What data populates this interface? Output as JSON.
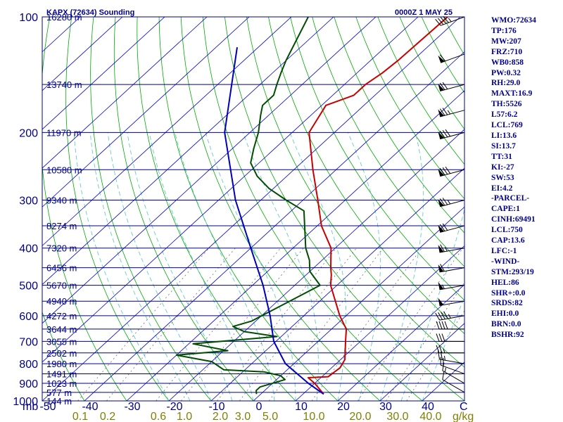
{
  "header": {
    "station": "KAPX (72634) Sounding",
    "time": "0000Z  1 MAY 25"
  },
  "axis": {
    "temp_unit": "C",
    "mixing_unit": "g/kg",
    "pressure_unit": "mb",
    "pressure_labels": [
      "100",
      "200",
      "300",
      "400",
      "500",
      "600",
      "700",
      "800",
      "900",
      "1000"
    ],
    "temp_labels": [
      "-50",
      "-40",
      "-30",
      "-20",
      "-10",
      "0",
      "10",
      "20",
      "30",
      "40"
    ],
    "mixing_labels": [
      "0.1",
      "0.2",
      "0.6",
      "1.0",
      "2.0",
      "3.0",
      "5.0",
      "10.0",
      "20.0",
      "30.0",
      "40.0"
    ]
  },
  "height_labels": [
    "16280 m",
    "13740 m",
    "11970 m",
    "10580 m",
    "9340 m",
    "8274 m",
    "7320 m",
    "6456 m",
    "5670 m",
    "4940 m",
    "4272 m",
    "3644 m",
    "3055 m",
    "2502 m",
    "1980 m",
    "1491 m",
    "1023 m",
    "577 m",
    "144 m"
  ],
  "indices": [
    "WMO:72634",
    "TP:176",
    "MW:207",
    "FRZ:710",
    "WB0:858",
    "PW:0.32",
    "RH:29.0",
    "MAXT:16.9",
    "TH:5526",
    "L57:6.2",
    "LCL:769",
    "LI:13.6",
    "SI:13.7",
    "TT:31",
    "KI:-27",
    "SW:53",
    "EI:4.2",
    "-PARCEL-",
    "CAPE:1",
    "CINH:69491",
    "LCL:750",
    "CAP:13.6",
    "LFC:-1",
    "-WIND-",
    "STM:293/19",
    "HEL:86",
    "SHR+:0.0",
    "SRDS:82",
    "EHI:0.0",
    "BRN:0.0",
    "BSHR:92"
  ],
  "colors": {
    "axis_text": "#00008b",
    "mixing_text": "#808000",
    "isobar": "#00008b",
    "isotherm": "#0000cd",
    "dry_adiabat": "#00aa00",
    "moist_adiabat": "#66cccc",
    "mixing_line": "#707070",
    "temperature": "#c80000",
    "dewpoint": "#004d00",
    "parcel": "#0000bb",
    "wind_barb": "#000000"
  },
  "chart_data": {
    "type": "line",
    "title": "KAPX (72634) Sounding",
    "xlabel": "C",
    "ylabel": "mb",
    "pressure_range": [
      1000,
      100
    ],
    "temp_ticks": [
      -50,
      -40,
      -30,
      -20,
      -10,
      0,
      10,
      20,
      30,
      40
    ],
    "pressure_levels": [
      1000,
      900,
      800,
      700,
      600,
      500,
      400,
      300,
      200,
      100
    ],
    "mixing_ratios": [
      0.1,
      0.2,
      0.6,
      1.0,
      2.0,
      3.0,
      5.0,
      10.0,
      20.0,
      30.0,
      40.0
    ],
    "height_levels": [
      {
        "p": 100,
        "h": 16280
      },
      {
        "p": 150,
        "h": 13740
      },
      {
        "p": 200,
        "h": 11970
      },
      {
        "p": 250,
        "h": 10580
      },
      {
        "p": 300,
        "h": 9340
      },
      {
        "p": 350,
        "h": 8274
      },
      {
        "p": 400,
        "h": 7320
      },
      {
        "p": 450,
        "h": 6456
      },
      {
        "p": 500,
        "h": 5670
      },
      {
        "p": 550,
        "h": 4940
      },
      {
        "p": 600,
        "h": 4272
      },
      {
        "p": 650,
        "h": 3644
      },
      {
        "p": 700,
        "h": 3055
      },
      {
        "p": 750,
        "h": 2502
      },
      {
        "p": 800,
        "h": 1980
      },
      {
        "p": 850,
        "h": 1491
      },
      {
        "p": 900,
        "h": 1023
      },
      {
        "p": 950,
        "h": 577
      },
      {
        "p": 1000,
        "h": 144
      }
    ],
    "series": [
      {
        "name": "Temperature",
        "points": [
          {
            "p": 960,
            "t": 14.9
          },
          {
            "p": 900,
            "t": 10.0
          },
          {
            "p": 870,
            "t": 7.0
          },
          {
            "p": 865,
            "t": 11.5
          },
          {
            "p": 820,
            "t": 12.0
          },
          {
            "p": 780,
            "t": 11.0
          },
          {
            "p": 700,
            "t": 6.5
          },
          {
            "p": 650,
            "t": 3.5
          },
          {
            "p": 600,
            "t": -1.5
          },
          {
            "p": 500,
            "t": -11.5
          },
          {
            "p": 470,
            "t": -14.0
          },
          {
            "p": 450,
            "t": -16.0
          },
          {
            "p": 400,
            "t": -21.0
          },
          {
            "p": 350,
            "t": -29.0
          },
          {
            "p": 300,
            "t": -36.5
          },
          {
            "p": 250,
            "t": -45.5
          },
          {
            "p": 200,
            "t": -56.0
          },
          {
            "p": 170,
            "t": -59.0
          },
          {
            "p": 160,
            "t": -55.0
          },
          {
            "p": 150,
            "t": -55.0
          },
          {
            "p": 140,
            "t": -54.0
          },
          {
            "p": 130,
            "t": -53.5
          },
          {
            "p": 100,
            "t": -53.0
          }
        ]
      },
      {
        "name": "Dewpoint",
        "points": [
          {
            "p": 960,
            "t": -1.0
          },
          {
            "p": 940,
            "t": -2.0
          },
          {
            "p": 920,
            "t": -2.0
          },
          {
            "p": 880,
            "t": 2.0
          },
          {
            "p": 860,
            "t": 0.0
          },
          {
            "p": 840,
            "t": -5.0
          },
          {
            "p": 830,
            "t": -15.0
          },
          {
            "p": 790,
            "t": -20.0
          },
          {
            "p": 760,
            "t": -30.0
          },
          {
            "p": 740,
            "t": -19.0
          },
          {
            "p": 710,
            "t": -29.0
          },
          {
            "p": 680,
            "t": -11.0
          },
          {
            "p": 660,
            "t": -20.0
          },
          {
            "p": 640,
            "t": -24.0
          },
          {
            "p": 620,
            "t": -21.0
          },
          {
            "p": 500,
            "t": -14.0
          },
          {
            "p": 460,
            "t": -20.0
          },
          {
            "p": 430,
            "t": -23.0
          },
          {
            "p": 400,
            "t": -27.0
          },
          {
            "p": 320,
            "t": -37.0
          },
          {
            "p": 300,
            "t": -44.0
          },
          {
            "p": 280,
            "t": -51.0
          },
          {
            "p": 260,
            "t": -57.0
          },
          {
            "p": 240,
            "t": -62.0
          },
          {
            "p": 220,
            "t": -65.0
          },
          {
            "p": 200,
            "t": -68.0
          },
          {
            "p": 180,
            "t": -72.0
          },
          {
            "p": 170,
            "t": -74.0
          },
          {
            "p": 160,
            "t": -74.0
          },
          {
            "p": 150,
            "t": -76.0
          },
          {
            "p": 140,
            "t": -78.0
          },
          {
            "p": 130,
            "t": -80.0
          },
          {
            "p": 100,
            "t": -86.0
          }
        ]
      },
      {
        "name": "Parcel",
        "points": [
          {
            "p": 960,
            "t": 14.9
          },
          {
            "p": 900,
            "t": 8.5
          },
          {
            "p": 800,
            "t": -2.0
          },
          {
            "p": 700,
            "t": -10.5
          },
          {
            "p": 600,
            "t": -18.0
          },
          {
            "p": 500,
            "t": -27.5
          },
          {
            "p": 400,
            "t": -40.0
          },
          {
            "p": 300,
            "t": -56.0
          },
          {
            "p": 200,
            "t": -76.0
          },
          {
            "p": 120,
            "t": -95.0
          }
        ]
      }
    ],
    "winds": [
      {
        "p": 950,
        "dir": 300,
        "spd": 10
      },
      {
        "p": 900,
        "dir": 300,
        "spd": 15
      },
      {
        "p": 850,
        "dir": 290,
        "spd": 20
      },
      {
        "p": 800,
        "dir": 280,
        "spd": 25
      },
      {
        "p": 750,
        "dir": 270,
        "spd": 25
      },
      {
        "p": 700,
        "dir": 270,
        "spd": 30
      },
      {
        "p": 650,
        "dir": 270,
        "spd": 40
      },
      {
        "p": 600,
        "dir": 260,
        "spd": 45
      },
      {
        "p": 550,
        "dir": 260,
        "spd": 50
      },
      {
        "p": 500,
        "dir": 260,
        "spd": 55
      },
      {
        "p": 450,
        "dir": 260,
        "spd": 60
      },
      {
        "p": 400,
        "dir": 260,
        "spd": 65
      },
      {
        "p": 350,
        "dir": 255,
        "spd": 70
      },
      {
        "p": 300,
        "dir": 255,
        "spd": 75
      },
      {
        "p": 250,
        "dir": 255,
        "spd": 80
      },
      {
        "p": 200,
        "dir": 255,
        "spd": 80
      },
      {
        "p": 175,
        "dir": 255,
        "spd": 75
      },
      {
        "p": 150,
        "dir": 255,
        "spd": 70
      },
      {
        "p": 125,
        "dir": 250,
        "spd": 60
      },
      {
        "p": 100,
        "dir": 250,
        "spd": 45
      }
    ]
  }
}
